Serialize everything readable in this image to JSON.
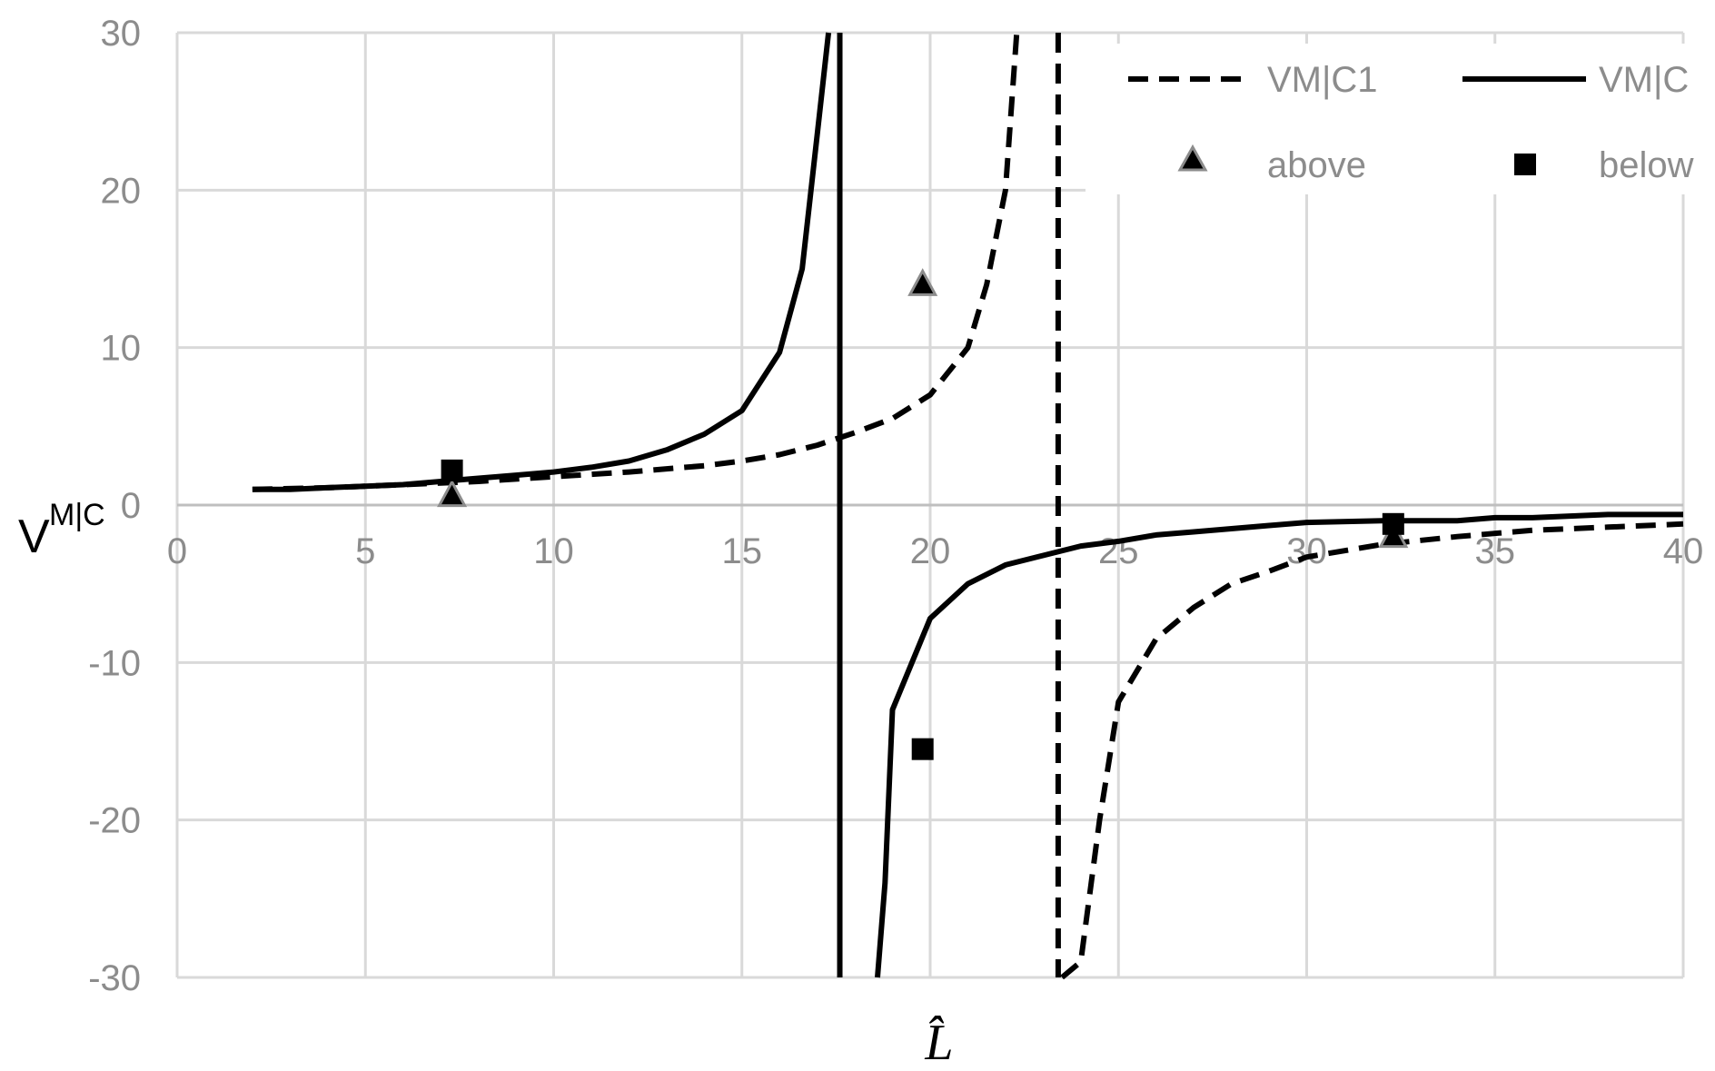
{
  "chart_data": {
    "type": "line",
    "title": "",
    "xlabel": "L̂",
    "ylabel": "V",
    "ylabel_subscript": "M|C",
    "xlim": [
      0,
      40
    ],
    "ylim": [
      -30,
      30
    ],
    "xticks": [
      0,
      5,
      10,
      15,
      20,
      25,
      30,
      35,
      40
    ],
    "yticks": [
      -30,
      -20,
      -10,
      0,
      10,
      20,
      30
    ],
    "grid": true,
    "legend_placement": "top-right",
    "series": [
      {
        "name": "VM|C1",
        "style": "dashed",
        "color": "#000000",
        "segments": [
          [
            [
              2,
              1.0
            ],
            [
              4,
              1.1
            ],
            [
              6,
              1.3
            ],
            [
              8,
              1.5
            ],
            [
              10,
              1.8
            ],
            [
              12,
              2.1
            ],
            [
              14,
              2.5
            ],
            [
              15,
              2.8
            ],
            [
              16,
              3.2
            ],
            [
              17,
              3.8
            ],
            [
              18,
              4.6
            ],
            [
              19,
              5.5
            ],
            [
              20,
              7.0
            ],
            [
              21,
              10.0
            ],
            [
              21.5,
              14.0
            ],
            [
              22,
              20.0
            ],
            [
              22.3,
              30.0
            ]
          ],
          [
            [
              23.5,
              -30.0
            ],
            [
              24,
              -29.0
            ],
            [
              24.5,
              -20.0
            ],
            [
              25,
              -12.5
            ],
            [
              26,
              -8.5
            ],
            [
              27,
              -6.5
            ],
            [
              28,
              -5.0
            ],
            [
              29,
              -4.2
            ],
            [
              30,
              -3.3
            ],
            [
              32,
              -2.5
            ],
            [
              34,
              -2.0
            ],
            [
              36,
              -1.6
            ],
            [
              38,
              -1.4
            ],
            [
              40,
              -1.2
            ]
          ]
        ]
      },
      {
        "name": "VM|C",
        "style": "solid",
        "color": "#000000",
        "segments": [
          [
            [
              2,
              1.0
            ],
            [
              3,
              1.0
            ],
            [
              4,
              1.1
            ],
            [
              5,
              1.2
            ],
            [
              6,
              1.3
            ],
            [
              7,
              1.5
            ],
            [
              8,
              1.7
            ],
            [
              9,
              1.9
            ],
            [
              10,
              2.1
            ],
            [
              11,
              2.4
            ],
            [
              12,
              2.8
            ],
            [
              13,
              3.5
            ],
            [
              14,
              4.5
            ],
            [
              15,
              6.0
            ],
            [
              16,
              9.7
            ],
            [
              16.6,
              15.0
            ],
            [
              17,
              23.5
            ],
            [
              17.3,
              30.0
            ]
          ],
          [
            [
              18.6,
              -30.0
            ],
            [
              18.8,
              -24.0
            ],
            [
              19,
              -13.0
            ],
            [
              20,
              -7.2
            ],
            [
              21,
              -5.0
            ],
            [
              22,
              -3.8
            ],
            [
              23,
              -3.2
            ],
            [
              24,
              -2.6
            ],
            [
              25,
              -2.3
            ],
            [
              26,
              -1.9
            ],
            [
              27,
              -1.7
            ],
            [
              28,
              -1.5
            ],
            [
              29,
              -1.3
            ],
            [
              30,
              -1.1
            ],
            [
              32,
              -1.0
            ],
            [
              34,
              -1.0
            ],
            [
              35,
              -0.8
            ],
            [
              36,
              -0.8
            ],
            [
              38,
              -0.6
            ],
            [
              40,
              -0.6
            ]
          ]
        ]
      },
      {
        "name": "above",
        "type": "scatter",
        "marker": "triangle",
        "color": "#000000",
        "stroke": "#8c8c8c",
        "points": [
          [
            7.3,
            0.6
          ],
          [
            19.8,
            14.0
          ],
          [
            32.3,
            -2.0
          ]
        ]
      },
      {
        "name": "below",
        "type": "scatter",
        "marker": "square",
        "color": "#000000",
        "points": [
          [
            7.3,
            2.2
          ],
          [
            19.8,
            -15.5
          ],
          [
            32.3,
            -1.2
          ]
        ]
      }
    ],
    "asymptotes": [
      {
        "series": "VM|C",
        "x": 17.6,
        "style": "solid"
      },
      {
        "series": "VM|C1",
        "x": 23.4,
        "style": "dashed"
      }
    ]
  }
}
